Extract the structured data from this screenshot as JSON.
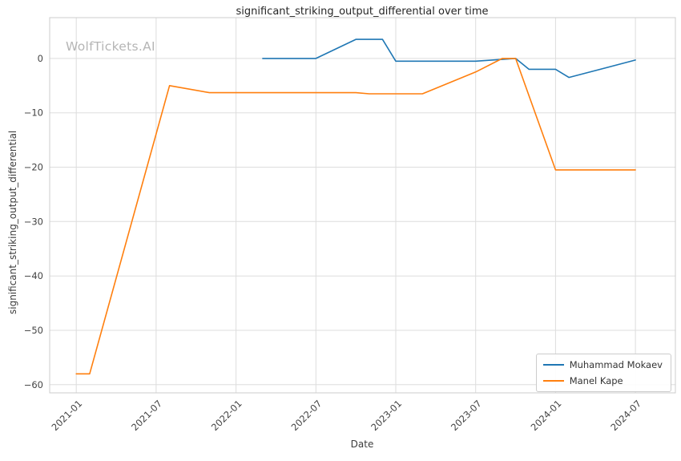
{
  "watermark": {
    "text": "WolfTickets.AI"
  },
  "chart_data": {
    "type": "line",
    "title": "significant_striking_output_differential over time",
    "xlabel": "Date",
    "ylabel": "significant_striking_output_differential",
    "xlim": [
      "2020-11",
      "2024-10"
    ],
    "ylim": [
      -61.5,
      7.5
    ],
    "grid": true,
    "legend_position": "lower right",
    "x_ticks": [
      "2021-01",
      "2021-07",
      "2022-01",
      "2022-07",
      "2023-01",
      "2023-07",
      "2024-01",
      "2024-07"
    ],
    "y_ticks": [
      {
        "value": 0,
        "label": "0"
      },
      {
        "value": -10,
        "label": "−10"
      },
      {
        "value": -20,
        "label": "−20"
      },
      {
        "value": -30,
        "label": "−30"
      },
      {
        "value": -40,
        "label": "−40"
      },
      {
        "value": -50,
        "label": "−50"
      },
      {
        "value": -60,
        "label": "−60"
      }
    ],
    "series": [
      {
        "name": "Muhammad Mokaev",
        "color": "#1f77b4",
        "points": [
          [
            "2022-03",
            0
          ],
          [
            "2022-07",
            0
          ],
          [
            "2022-10",
            3.5
          ],
          [
            "2022-12",
            3.5
          ],
          [
            "2023-01",
            -0.5
          ],
          [
            "2023-07",
            -0.5
          ],
          [
            "2023-10",
            0
          ],
          [
            "2023-11",
            -2
          ],
          [
            "2024-01",
            -2
          ],
          [
            "2024-02",
            -3.5
          ],
          [
            "2024-07",
            -0.3
          ]
        ]
      },
      {
        "name": "Manel Kape",
        "color": "#ff7f0e",
        "points": [
          [
            "2021-01",
            -58
          ],
          [
            "2021-02",
            -58
          ],
          [
            "2021-08",
            -5
          ],
          [
            "2021-11",
            -6.3
          ],
          [
            "2022-10",
            -6.3
          ],
          [
            "2022-11",
            -6.5
          ],
          [
            "2023-03",
            -6.5
          ],
          [
            "2023-07",
            -2.5
          ],
          [
            "2023-09",
            0
          ],
          [
            "2023-10",
            0
          ],
          [
            "2024-01",
            -20.5
          ],
          [
            "2024-07",
            -20.5
          ]
        ]
      }
    ]
  }
}
